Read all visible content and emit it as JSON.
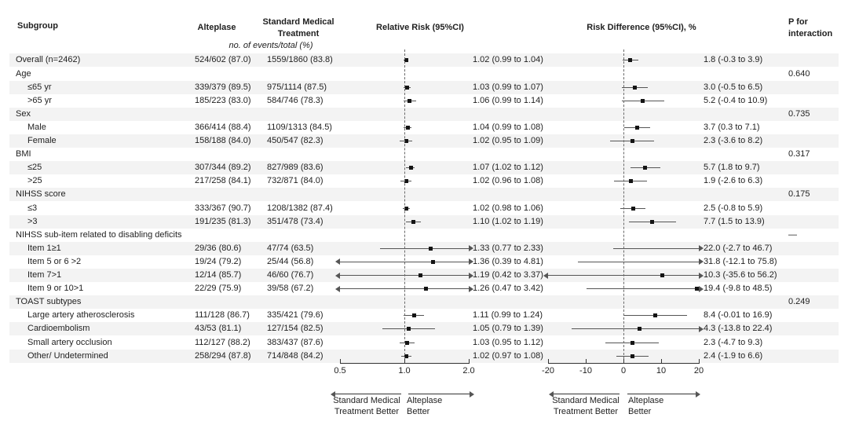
{
  "header": {
    "subgroup": "Subgroup",
    "alteplase": "Alteplase",
    "smt_line1": "Standard Medical",
    "smt_line2": "Treatment",
    "rr": "Relative Risk (95%CI)",
    "rd": "Risk Difference (95%CI), %",
    "p_line1": "P for",
    "p_line2": "interaction"
  },
  "events_note": "no. of events/total (%)",
  "legend": {
    "smt_better_1": "Standard Medical",
    "smt_better_2": "Treatment Better",
    "alteplase_better_1": "Alteplase",
    "alteplase_better_2": "Better"
  },
  "colors": {
    "stripe": "#f3f3f3",
    "text": "#1f1f1f",
    "line": "#555555",
    "marker": "#141414",
    "axis": "#333333"
  },
  "chart_data": {
    "type": "scatter",
    "subtype": "forest-plot",
    "rr_axis": {
      "scale": "log",
      "ticks": [
        "0.5",
        "1.0",
        "2.0"
      ],
      "range": [
        0.5,
        2.0
      ],
      "null_line": 1.0
    },
    "rd_axis": {
      "scale": "linear",
      "ticks": [
        "-20",
        "-10",
        "0",
        "10",
        "20"
      ],
      "range": [
        -20,
        20
      ],
      "null_line": 0
    },
    "rows": [
      {
        "label": "Overall (n=2462)",
        "indent": false,
        "alteplase": "524/602 (87.0)",
        "smt": "1559/1860 (83.8)",
        "rr": [
          1.02,
          0.99,
          1.04
        ],
        "rr_text": "1.02 (0.99 to 1.04)",
        "rd": [
          1.8,
          -0.3,
          3.9
        ],
        "rd_text": "1.8 (-0.3 to 3.9)",
        "p": ""
      },
      {
        "label": "Age",
        "indent": false,
        "p": "0.640"
      },
      {
        "label": "≤65 yr",
        "indent": true,
        "alteplase": "339/379 (89.5)",
        "smt": "975/1114 (87.5)",
        "rr": [
          1.03,
          0.99,
          1.07
        ],
        "rr_text": "1.03 (0.99 to 1.07)",
        "rd": [
          3.0,
          -0.5,
          6.5
        ],
        "rd_text": "3.0 (-0.5 to 6.5)",
        "p": ""
      },
      {
        "label": ">65 yr",
        "indent": true,
        "alteplase": "185/223 (83.0)",
        "smt": "584/746 (78.3)",
        "rr": [
          1.06,
          0.99,
          1.14
        ],
        "rr_text": "1.06 (0.99 to 1.14)",
        "rd": [
          5.2,
          -0.4,
          10.9
        ],
        "rd_text": "5.2 (-0.4 to 10.9)",
        "p": ""
      },
      {
        "label": "Sex",
        "indent": false,
        "p": "0.735"
      },
      {
        "label": "Male",
        "indent": true,
        "alteplase": "366/414 (88.4)",
        "smt": "1109/1313 (84.5)",
        "rr": [
          1.04,
          0.99,
          1.08
        ],
        "rr_text": "1.04 (0.99 to 1.08)",
        "rd": [
          3.7,
          0.3,
          7.1
        ],
        "rd_text": "3.7 (0.3 to 7.1)",
        "p": ""
      },
      {
        "label": "Female",
        "indent": true,
        "alteplase": "158/188 (84.0)",
        "smt": "450/547 (82.3)",
        "rr": [
          1.02,
          0.95,
          1.09
        ],
        "rr_text": "1.02 (0.95 to 1.09)",
        "rd": [
          2.3,
          -3.6,
          8.2
        ],
        "rd_text": "2.3 (-3.6 to 8.2)",
        "p": ""
      },
      {
        "label": "BMI",
        "indent": false,
        "p": "0.317"
      },
      {
        "label": "≤25",
        "indent": true,
        "alteplase": "307/344 (89.2)",
        "smt": "827/989 (83.6)",
        "rr": [
          1.07,
          1.02,
          1.12
        ],
        "rr_text": "1.07 (1.02 to 1.12)",
        "rd": [
          5.7,
          1.8,
          9.7
        ],
        "rd_text": "5.7 (1.8 to 9.7)",
        "p": ""
      },
      {
        "label": ">25",
        "indent": true,
        "alteplase": "217/258 (84.1)",
        "smt": "732/871 (84.0)",
        "rr": [
          1.02,
          0.96,
          1.08
        ],
        "rr_text": "1.02 (0.96 to 1.08)",
        "rd": [
          1.9,
          -2.6,
          6.3
        ],
        "rd_text": "1.9 (-2.6 to 6.3)",
        "p": ""
      },
      {
        "label": "NIHSS score",
        "indent": false,
        "p": "0.175"
      },
      {
        "label": "≤3",
        "indent": true,
        "alteplase": "333/367 (90.7)",
        "smt": "1208/1382 (87.4)",
        "rr": [
          1.02,
          0.98,
          1.06
        ],
        "rr_text": "1.02 (0.98 to 1.06)",
        "rd": [
          2.5,
          -0.8,
          5.9
        ],
        "rd_text": "2.5 (-0.8 to 5.9)",
        "p": ""
      },
      {
        "label": ">3",
        "indent": true,
        "alteplase": "191/235 (81.3)",
        "smt": "351/478 (73.4)",
        "rr": [
          1.1,
          1.02,
          1.19
        ],
        "rr_text": "1.10 (1.02 to 1.19)",
        "rd": [
          7.7,
          1.5,
          13.9
        ],
        "rd_text": "7.7 (1.5 to 13.9)",
        "p": ""
      },
      {
        "label": "NIHSS sub-item related to disabling deficits",
        "indent": false,
        "p": "—"
      },
      {
        "label": "Item 1≥1",
        "indent": true,
        "alteplase": "29/36 (80.6)",
        "smt": "47/74 (63.5)",
        "rr": [
          1.33,
          0.77,
          2.33
        ],
        "rr_text": "1.33 (0.77 to 2.33)",
        "rd": [
          22.0,
          -2.7,
          46.7
        ],
        "rd_text": "22.0 (-2.7 to 46.7)",
        "p": ""
      },
      {
        "label": "Item 5 or 6 >2",
        "indent": true,
        "alteplase": "19/24 (79.2)",
        "smt": "25/44 (56.8)",
        "rr": [
          1.36,
          0.39,
          4.81
        ],
        "rr_text": "1.36 (0.39 to 4.81)",
        "rd": [
          31.8,
          -12.1,
          75.8
        ],
        "rd_text": "31.8 (-12.1 to 75.8)",
        "p": ""
      },
      {
        "label": "Item 7>1",
        "indent": true,
        "alteplase": "12/14 (85.7)",
        "smt": "46/60 (76.7)",
        "rr": [
          1.19,
          0.42,
          3.37
        ],
        "rr_text": "1.19 (0.42 to 3.37)",
        "rd": [
          10.3,
          -35.6,
          56.2
        ],
        "rd_text": "10.3 (-35.6 to 56.2)",
        "p": ""
      },
      {
        "label": "Item 9 or 10>1",
        "indent": true,
        "alteplase": "22/29 (75.9)",
        "smt": "39/58 (67.2)",
        "rr": [
          1.26,
          0.47,
          3.42
        ],
        "rr_text": "1.26 (0.47 to 3.42)",
        "rd": [
          19.4,
          -9.8,
          48.5
        ],
        "rd_text": "19.4 (-9.8 to 48.5)",
        "p": ""
      },
      {
        "label": "TOAST subtypes",
        "indent": false,
        "p": "0.249"
      },
      {
        "label": "Large artery atherosclerosis",
        "indent": true,
        "alteplase": "111/128 (86.7)",
        "smt": "335/421 (79.6)",
        "rr": [
          1.11,
          0.99,
          1.24
        ],
        "rr_text": "1.11 (0.99 to 1.24)",
        "rd": [
          8.4,
          -0.01,
          16.9
        ],
        "rd_text": "8.4 (-0.01 to 16.9)",
        "p": ""
      },
      {
        "label": "Cardioembolism",
        "indent": true,
        "alteplase": "43/53 (81.1)",
        "smt": "127/154 (82.5)",
        "rr": [
          1.05,
          0.79,
          1.39
        ],
        "rr_text": "1.05 (0.79 to 1.39)",
        "rd": [
          4.3,
          -13.8,
          22.4
        ],
        "rd_text": "4.3 (-13.8 to 22.4)",
        "p": ""
      },
      {
        "label": "Small artery occlusion",
        "indent": true,
        "alteplase": "112/127 (88.2)",
        "smt": "383/437 (87.6)",
        "rr": [
          1.03,
          0.95,
          1.12
        ],
        "rr_text": "1.03 (0.95 to 1.12)",
        "rd": [
          2.3,
          -4.7,
          9.3
        ],
        "rd_text": "2.3 (-4.7 to 9.3)",
        "p": ""
      },
      {
        "label": "Other/ Undetermined",
        "indent": true,
        "alteplase": "258/294 (87.8)",
        "smt": "714/848 (84.2)",
        "rr": [
          1.02,
          0.97,
          1.08
        ],
        "rr_text": "1.02 (0.97 to 1.08)",
        "rd": [
          2.4,
          -1.9,
          6.6
        ],
        "rd_text": "2.4 (-1.9 to 6.6)",
        "p": ""
      }
    ]
  }
}
